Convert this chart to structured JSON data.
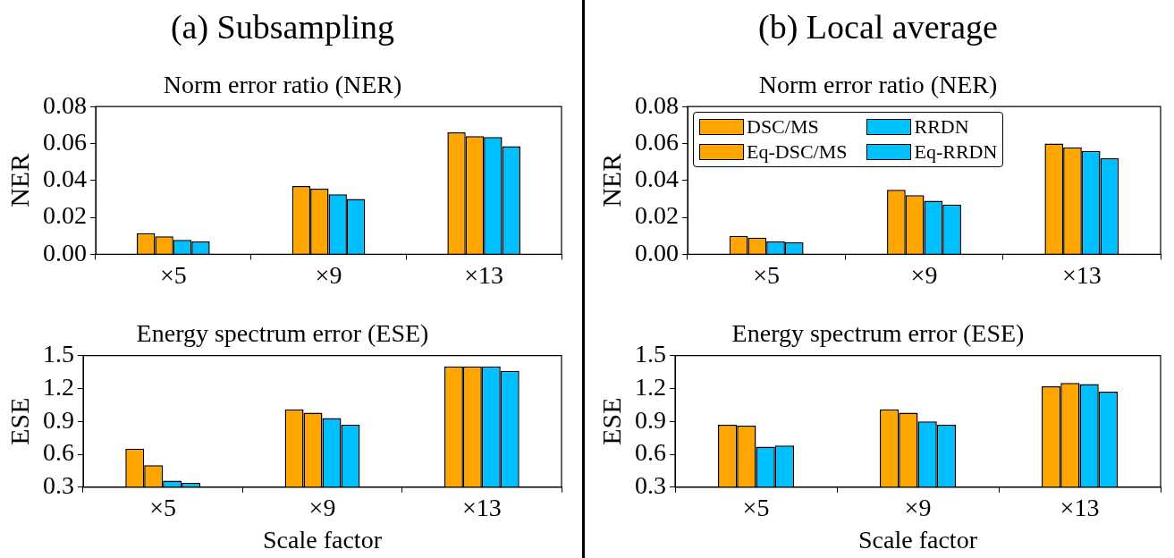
{
  "chart_data": [
    {
      "type": "bar",
      "title": "(a) Subsampling",
      "subtitle": "Norm error ratio (NER)",
      "ylabel": "NER",
      "categories": [
        "×5",
        "×9",
        "×13"
      ],
      "series": [
        {
          "color": "#ffa500",
          "values": [
            0.0115,
            0.037,
            0.066
          ]
        },
        {
          "color": "#ffa500",
          "values": [
            0.0098,
            0.0355,
            0.064
          ]
        },
        {
          "color": "#00bfff",
          "values": [
            0.0078,
            0.0325,
            0.0635
          ]
        },
        {
          "color": "#00bfff",
          "values": [
            0.007,
            0.03,
            0.0585
          ]
        }
      ],
      "ylim": [
        0,
        0.08
      ],
      "yticks": [
        {
          "value": 0,
          "label": "0.00"
        },
        0.02,
        0.04,
        0.06,
        0.08
      ],
      "grid": false,
      "legend": false
    },
    {
      "type": "bar",
      "title": "(b) Local average",
      "subtitle": "Norm error ratio (NER)",
      "ylabel": "NER",
      "categories": [
        "×5",
        "×9",
        "×13"
      ],
      "series": [
        {
          "name": "DSC/MS",
          "color": "#ffa500",
          "values": [
            0.01,
            0.035,
            0.06
          ]
        },
        {
          "name": "Eq-DSC/MS",
          "color": "#ffa500",
          "values": [
            0.009,
            0.032,
            0.058
          ]
        },
        {
          "name": "RRDN",
          "color": "#00bfff",
          "values": [
            0.007,
            0.029,
            0.056
          ]
        },
        {
          "name": "Eq-RRDN",
          "color": "#00bfff",
          "values": [
            0.0065,
            0.027,
            0.052
          ]
        }
      ],
      "ylim": [
        0,
        0.08
      ],
      "yticks": [
        {
          "value": 0,
          "label": "0.00"
        },
        0.02,
        0.04,
        0.06,
        0.08
      ],
      "grid": false,
      "legend": "top left"
    },
    {
      "type": "bar",
      "title": "Energy spectrum error (ESE)",
      "xlabel": "Scale factor",
      "ylabel": "ESE",
      "categories": [
        "×5",
        "×9",
        "×13"
      ],
      "series": [
        {
          "color": "#ffa500",
          "values": [
            0.65,
            1.01,
            1.4
          ]
        },
        {
          "color": "#ffa500",
          "values": [
            0.5,
            0.98,
            1.4
          ]
        },
        {
          "color": "#00bfff",
          "values": [
            0.36,
            0.93,
            1.4
          ]
        },
        {
          "color": "#00bfff",
          "values": [
            0.34,
            0.87,
            1.36
          ]
        }
      ],
      "ylim": [
        0.3,
        1.5
      ],
      "yticks": [
        0.3,
        0.6,
        0.9,
        1.2,
        1.5
      ],
      "grid": false,
      "legend": false
    },
    {
      "type": "bar",
      "title": "Energy spectrum error (ESE)",
      "xlabel": "Scale factor",
      "ylabel": "ESE",
      "categories": [
        "×5",
        "×9",
        "×13"
      ],
      "series": [
        {
          "color": "#ffa500",
          "values": [
            0.87,
            1.01,
            1.22
          ]
        },
        {
          "color": "#ffa500",
          "values": [
            0.86,
            0.98,
            1.25
          ]
        },
        {
          "color": "#00bfff",
          "values": [
            0.67,
            0.9,
            1.24
          ]
        },
        {
          "color": "#00bfff",
          "values": [
            0.68,
            0.87,
            1.17
          ]
        }
      ],
      "ylim": [
        0.3,
        1.5
      ],
      "yticks": [
        0.3,
        0.6,
        0.9,
        1.2,
        1.5
      ],
      "grid": false,
      "legend": false
    }
  ]
}
